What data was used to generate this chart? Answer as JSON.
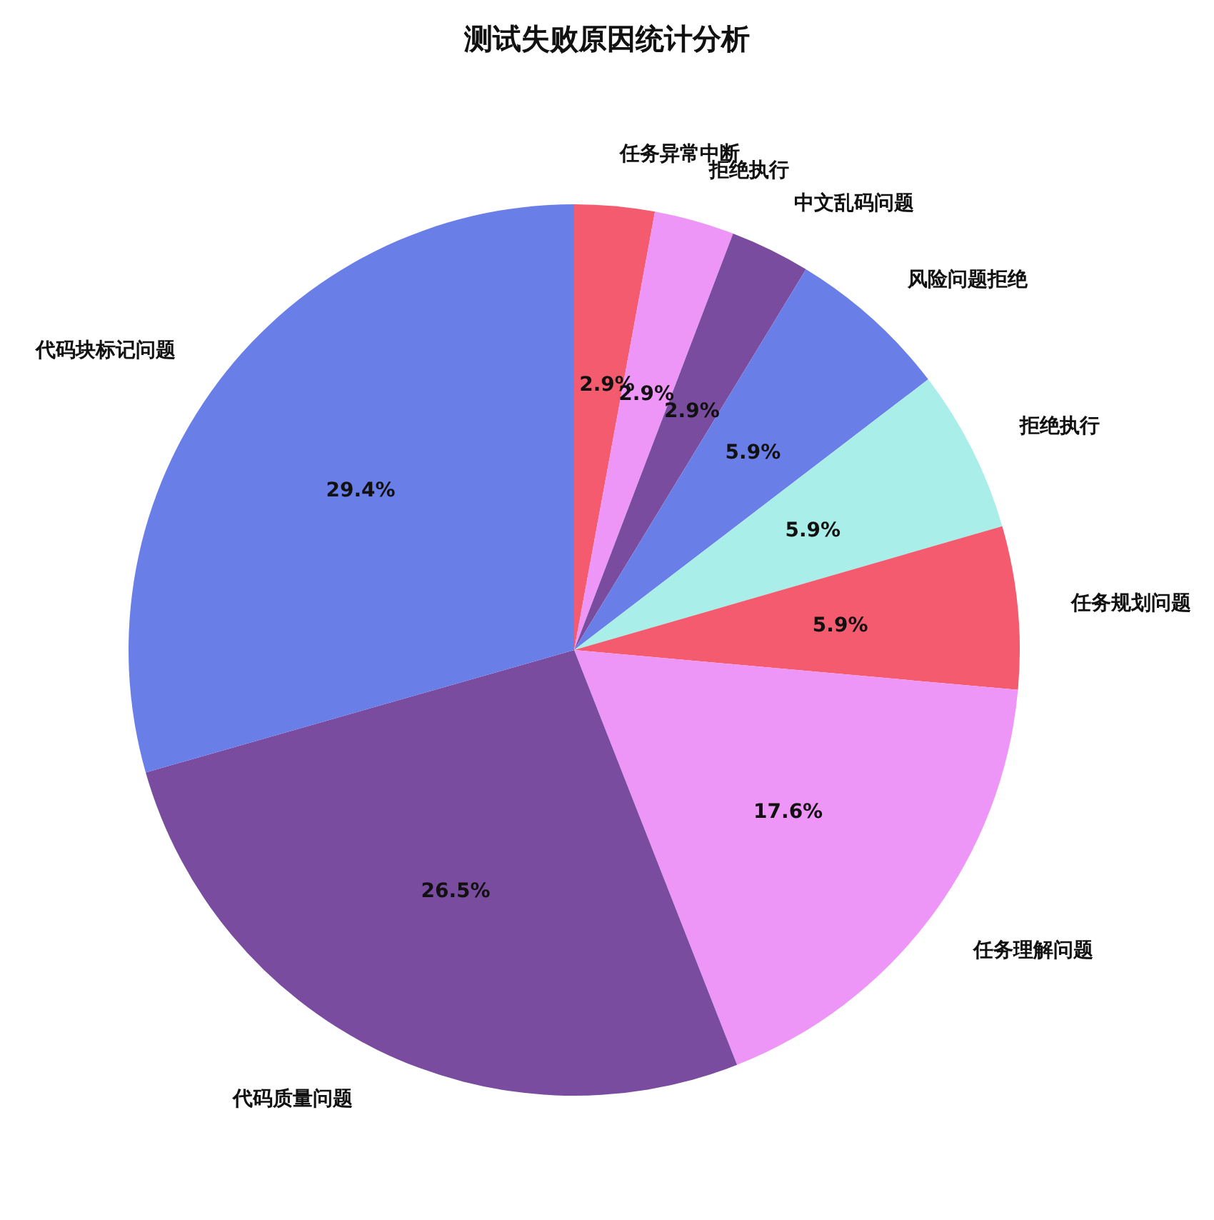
{
  "chart_data": {
    "type": "pie",
    "title": "测试失败原因统计分析",
    "categories": [
      "任务异常中断",
      "拒绝执行",
      "中文乱码问题",
      "风险问题拒绝",
      "拒绝执行",
      "任务规划问题",
      "任务理解问题",
      "代码质量问题",
      "代码块标记问题"
    ],
    "values": [
      2.9,
      2.9,
      2.9,
      5.9,
      5.9,
      5.9,
      17.6,
      26.5,
      29.4
    ],
    "colors": [
      "#f45b6f",
      "#ee96f7",
      "#7a4c9f",
      "#6a7ee8",
      "#aaeee9",
      "#f45b6f",
      "#ee96f7",
      "#7a4c9f",
      "#6a7ee8"
    ],
    "value_labels": [
      "2.9%",
      "2.9%",
      "2.9%",
      "5.9%",
      "5.9%",
      "5.9%",
      "17.6%",
      "26.5%",
      "29.4%"
    ]
  }
}
